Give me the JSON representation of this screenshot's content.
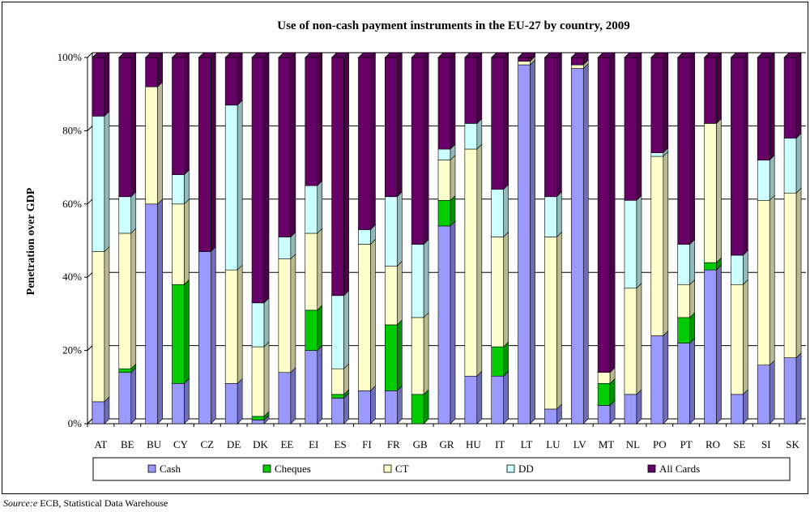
{
  "chart_data": {
    "type": "bar",
    "stacked": true,
    "percent_stacked": true,
    "three_d": true,
    "title": "Use of non-cash payment instruments in the EU-27 by country, 2009",
    "ylabel": "Penetration over GDP",
    "xlabel": "",
    "ylim": [
      0,
      100
    ],
    "yticks": [
      "0%",
      "20%",
      "40%",
      "60%",
      "80%",
      "100%"
    ],
    "grid": true,
    "legend_position": "bottom",
    "categories": [
      "AT",
      "BE",
      "BU",
      "CY",
      "CZ",
      "DE",
      "DK",
      "EE",
      "EI",
      "ES",
      "FI",
      "FR",
      "GB",
      "GR",
      "HU",
      "IT",
      "LT",
      "LU",
      "LV",
      "MT",
      "NL",
      "PO",
      "PT",
      "RO",
      "SE",
      "SI",
      "SK"
    ],
    "series": [
      {
        "name": "Cash",
        "color": "#9999ff",
        "values": [
          6,
          14,
          60,
          11,
          47,
          11,
          1,
          14,
          20,
          7,
          9,
          9,
          0,
          54,
          13,
          13,
          98,
          4,
          97,
          5,
          8,
          24,
          22,
          42,
          8,
          16,
          18
        ]
      },
      {
        "name": "Cheques",
        "color": "#00cc00",
        "values": [
          0,
          1,
          0,
          27,
          0,
          0,
          1,
          0,
          11,
          1,
          0,
          18,
          8,
          7,
          0,
          8,
          0,
          0,
          0,
          6,
          0,
          0,
          7,
          2,
          0,
          0,
          0
        ]
      },
      {
        "name": "CT",
        "color": "#ffffcc",
        "values": [
          41,
          37,
          32,
          22,
          0,
          31,
          19,
          31,
          21,
          7,
          40,
          16,
          21,
          11,
          62,
          30,
          1,
          47,
          1,
          3,
          29,
          49,
          9,
          38,
          30,
          45,
          45
        ]
      },
      {
        "name": "DD",
        "color": "#ccffff",
        "values": [
          37,
          10,
          0,
          8,
          0,
          45,
          12,
          6,
          13,
          20,
          4,
          19,
          20,
          3,
          7,
          13,
          0,
          11,
          0,
          0,
          24,
          1,
          11,
          0,
          8,
          11,
          15
        ]
      },
      {
        "name": "All Cards",
        "color": "#660066",
        "values": [
          16,
          38,
          8,
          32,
          53,
          13,
          67,
          49,
          35,
          65,
          47,
          38,
          51,
          25,
          18,
          36,
          1,
          38,
          2,
          86,
          39,
          26,
          51,
          18,
          54,
          28,
          22
        ]
      }
    ]
  },
  "source": {
    "label": "Source:e",
    "text": "ECB, Statistical Data Warehouse"
  }
}
